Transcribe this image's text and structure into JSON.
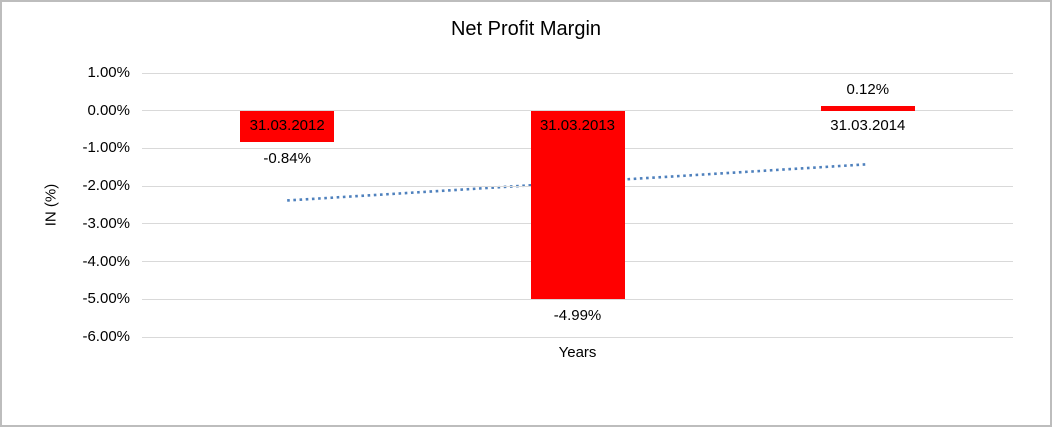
{
  "chart_data": {
    "type": "bar",
    "title": "Net Profit Margin",
    "xlabel": "Years",
    "ylabel": "IN (%)",
    "categories": [
      "31.03.2012",
      "31.03.2013",
      "31.03.2014"
    ],
    "values": [
      -0.84,
      -4.99,
      0.12
    ],
    "data_labels": [
      "-0.84%",
      "-4.99%",
      "0.12%"
    ],
    "ylim": [
      -6,
      1
    ],
    "ytick_step": 1,
    "ytick_labels": [
      "1.00%",
      "0.00%",
      "-1.00%",
      "-2.00%",
      "-3.00%",
      "-4.00%",
      "-5.00%",
      "-6.00%"
    ],
    "grid": true,
    "legend": "none",
    "bar_color": "#FF0000",
    "gridline_color": "#D9D9D9",
    "text_color": "#000000",
    "trendline": {
      "style": "dotted",
      "color": "#4F81BD",
      "start_value": -2.38,
      "end_value": -1.42
    }
  }
}
